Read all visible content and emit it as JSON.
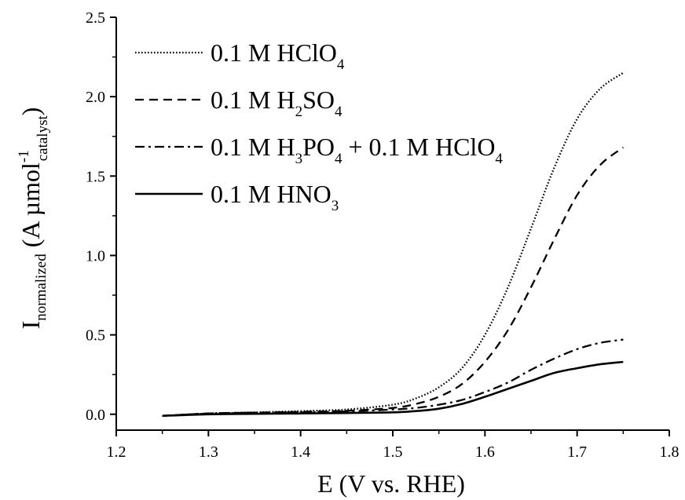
{
  "chart_data": {
    "type": "line",
    "xlabel": "E (V vs. RHE)",
    "ylabel": {
      "main": "I",
      "main_sub": "normalized",
      "open": " (A µmol",
      "sup": "-1",
      "sub": "catalyst",
      "close": ")"
    },
    "xlim": [
      1.2,
      1.8
    ],
    "ylim": [
      -0.1,
      2.5
    ],
    "x_ticks": [
      "1.2",
      "1.3",
      "1.4",
      "1.5",
      "1.6",
      "1.7",
      "1.8"
    ],
    "y_ticks": [
      "0.0",
      "0.5",
      "1.0",
      "1.5",
      "2.0",
      "2.5"
    ],
    "grid": false,
    "legend_position": "top-left",
    "series": [
      {
        "name": "0.1 M HClO4",
        "label_parts": [
          {
            "t": "0.1 M HClO"
          },
          {
            "t": "4",
            "sub": true
          }
        ],
        "line_style": "dotted",
        "x": [
          1.25,
          1.3,
          1.35,
          1.4,
          1.45,
          1.5,
          1.525,
          1.55,
          1.575,
          1.6,
          1.625,
          1.65,
          1.675,
          1.7,
          1.725,
          1.75
        ],
        "y": [
          -0.01,
          0.005,
          0.012,
          0.02,
          0.03,
          0.06,
          0.1,
          0.17,
          0.29,
          0.5,
          0.8,
          1.17,
          1.55,
          1.86,
          2.05,
          2.15
        ]
      },
      {
        "name": "0.1 M H2SO4",
        "label_parts": [
          {
            "t": "0.1 M H"
          },
          {
            "t": "2",
            "sub": true
          },
          {
            "t": "SO"
          },
          {
            "t": "4",
            "sub": true
          }
        ],
        "line_style": "dashed",
        "x": [
          1.25,
          1.3,
          1.35,
          1.4,
          1.45,
          1.5,
          1.525,
          1.55,
          1.575,
          1.6,
          1.625,
          1.65,
          1.675,
          1.7,
          1.725,
          1.75
        ],
        "y": [
          -0.01,
          0.005,
          0.01,
          0.015,
          0.022,
          0.04,
          0.065,
          0.11,
          0.19,
          0.33,
          0.53,
          0.8,
          1.1,
          1.38,
          1.57,
          1.68
        ]
      },
      {
        "name": "0.1 M H3PO4 + 0.1 M HClO4",
        "label_parts": [
          {
            "t": "0.1 M H"
          },
          {
            "t": "3",
            "sub": true
          },
          {
            "t": "PO"
          },
          {
            "t": "4",
            "sub": true
          },
          {
            "t": " + 0.1 M HClO"
          },
          {
            "t": "4",
            "sub": true
          }
        ],
        "line_style": "dashdot",
        "x": [
          1.25,
          1.3,
          1.35,
          1.4,
          1.45,
          1.5,
          1.525,
          1.55,
          1.575,
          1.6,
          1.625,
          1.65,
          1.675,
          1.7,
          1.725,
          1.75
        ],
        "y": [
          -0.01,
          0.005,
          0.01,
          0.012,
          0.018,
          0.03,
          0.04,
          0.06,
          0.09,
          0.14,
          0.2,
          0.28,
          0.35,
          0.41,
          0.45,
          0.47
        ]
      },
      {
        "name": "0.1 M HNO3",
        "label_parts": [
          {
            "t": "0.1 M HNO"
          },
          {
            "t": "3",
            "sub": true
          }
        ],
        "line_style": "solid",
        "x": [
          1.25,
          1.3,
          1.35,
          1.4,
          1.45,
          1.5,
          1.525,
          1.55,
          1.575,
          1.6,
          1.625,
          1.65,
          1.675,
          1.7,
          1.725,
          1.75
        ],
        "y": [
          -0.01,
          0.0,
          0.003,
          0.005,
          0.008,
          0.012,
          0.02,
          0.035,
          0.065,
          0.11,
          0.16,
          0.21,
          0.26,
          0.29,
          0.315,
          0.33
        ]
      }
    ],
    "colors": {
      "line": "#000000",
      "axis": "#000000",
      "background": "#ffffff"
    }
  }
}
